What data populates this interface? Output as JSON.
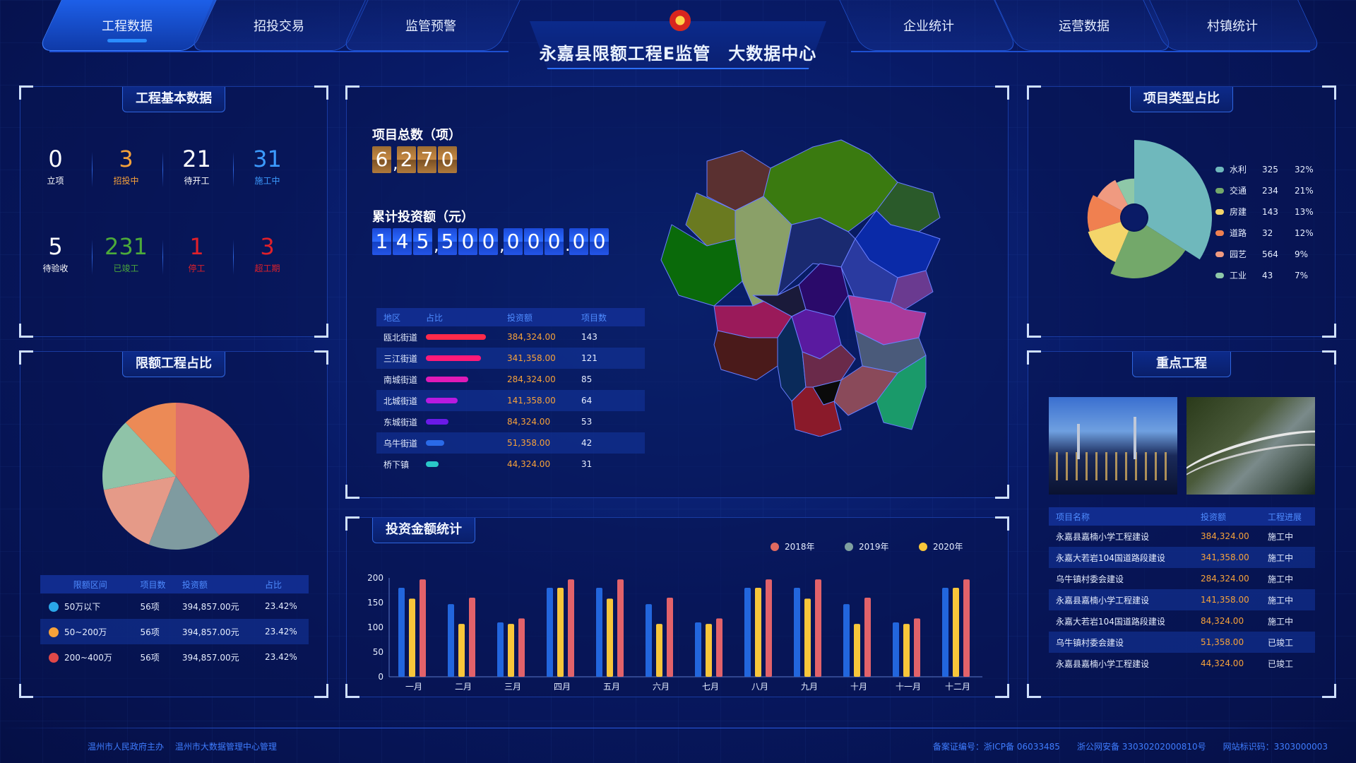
{
  "header": {
    "title": "永嘉县限额工程E监管　大数据中心",
    "tabs_left": [
      "工程数据",
      "招投交易",
      "监管预警"
    ],
    "tabs_right": [
      "企业统计",
      "运营数据",
      "村镇统计"
    ],
    "active_tab": "工程数据"
  },
  "basic": {
    "title": "工程基本数据",
    "row1": [
      {
        "value": "0",
        "label": "立项",
        "color": "#ffffff"
      },
      {
        "value": "3",
        "label": "招投中",
        "color": "#f7a23a"
      },
      {
        "value": "21",
        "label": "待开工",
        "color": "#ffffff"
      },
      {
        "value": "31",
        "label": "施工中",
        "color": "#3c9bff"
      }
    ],
    "row2": [
      {
        "value": "5",
        "label": "待验收",
        "color": "#ffffff"
      },
      {
        "value": "231",
        "label": "已竣工",
        "color": "#4caa3a"
      },
      {
        "value": "1",
        "label": "停工",
        "color": "#e0202a"
      },
      {
        "value": "3",
        "label": "超工期",
        "color": "#e0202a"
      }
    ]
  },
  "quota": {
    "title": "限额工程占比",
    "headers": [
      "限额区间",
      "项目数",
      "投资额",
      "占比"
    ],
    "rows": [
      {
        "range": "50万以下",
        "count": "56项",
        "amount": "394,857.00元",
        "ratio": "23.42%",
        "color": "#2aa6e8"
      },
      {
        "range": "50~200万",
        "count": "56项",
        "amount": "394,857.00元",
        "ratio": "23.42%",
        "color": "#f7a23a"
      },
      {
        "range": "200~400万",
        "count": "56项",
        "amount": "394,857.00元",
        "ratio": "23.42%",
        "color": "#e04848"
      }
    ]
  },
  "quota_chart": {
    "type": "pie",
    "slices": [
      {
        "value": 40,
        "color": "#e0706a"
      },
      {
        "value": 16,
        "color": "#7f9ba0"
      },
      {
        "value": 16,
        "color": "#e59a88"
      },
      {
        "value": 16,
        "color": "#8fc3a8"
      },
      {
        "value": 12,
        "color": "#ec8a56"
      }
    ]
  },
  "center": {
    "total_label": "项目总数（项）",
    "total_digits": [
      "6",
      ",",
      "2",
      "7",
      "0"
    ],
    "invest_label": "累计投资额（元）",
    "invest_digits": [
      "1",
      "4",
      "5",
      ",",
      "5",
      "0",
      "0",
      ",",
      "0",
      "0",
      "0",
      ".",
      "0",
      "0"
    ],
    "table_headers": [
      "地区",
      "占比",
      "投资额",
      "项目数"
    ],
    "regions": [
      {
        "name": "瓯北街道",
        "bar": 0.85,
        "color": "#ff2a4a",
        "amount": "384,324.00",
        "count": "143"
      },
      {
        "name": "三江街道",
        "bar": 0.78,
        "color": "#ff1a78",
        "amount": "341,358.00",
        "count": "121"
      },
      {
        "name": "南城街道",
        "bar": 0.6,
        "color": "#e01ab8",
        "amount": "284,324.00",
        "count": "85"
      },
      {
        "name": "北城街道",
        "bar": 0.45,
        "color": "#b81ae0",
        "amount": "141,358.00",
        "count": "64"
      },
      {
        "name": "东城街道",
        "bar": 0.32,
        "color": "#6a1ae8",
        "amount": "84,324.00",
        "count": "53"
      },
      {
        "name": "乌牛街道",
        "bar": 0.26,
        "color": "#2a6ae8",
        "amount": "51,358.00",
        "count": "42"
      },
      {
        "name": "桥下镇",
        "bar": 0.18,
        "color": "#2ac8c8",
        "amount": "44,324.00",
        "count": "31"
      }
    ]
  },
  "project_type": {
    "title": "项目类型占比",
    "items": [
      {
        "name": "水利",
        "count": "325",
        "pct": "32%",
        "color": "#6fb8bc",
        "value": 32
      },
      {
        "name": "交通",
        "count": "234",
        "pct": "21%",
        "color": "#73a86a",
        "value": 21
      },
      {
        "name": "房建",
        "count": "143",
        "pct": "13%",
        "color": "#f4d56a",
        "value": 13
      },
      {
        "name": "道路",
        "count": "32",
        "pct": "12%",
        "color": "#f08050",
        "value": 12
      },
      {
        "name": "园艺",
        "count": "564",
        "pct": "9%",
        "color": "#f09a80",
        "value": 9
      },
      {
        "name": "工业",
        "count": "43",
        "pct": "7%",
        "color": "#8ec8a8",
        "value": 7
      }
    ]
  },
  "key_projects": {
    "title": "重点工程",
    "headers": [
      "项目名称",
      "投资额",
      "工程进展"
    ],
    "rows": [
      {
        "name": "永嘉县嘉楠小学工程建设",
        "amount": "384,324.00",
        "status": "施工中"
      },
      {
        "name": "永嘉大若岩104国道路段建设",
        "amount": "341,358.00",
        "status": "施工中"
      },
      {
        "name": "乌牛镇村委会建设",
        "amount": "284,324.00",
        "status": "施工中"
      },
      {
        "name": "永嘉县嘉楠小学工程建设",
        "amount": "141,358.00",
        "status": "施工中"
      },
      {
        "name": "永嘉大若岩104国道路段建设",
        "amount": "84,324.00",
        "status": "施工中"
      },
      {
        "name": "乌牛镇村委会建设",
        "amount": "51,358.00",
        "status": "已竣工"
      },
      {
        "name": "永嘉县嘉楠小学工程建设",
        "amount": "44,324.00",
        "status": "已竣工"
      }
    ]
  },
  "invest_chart_title": "投资金额统计",
  "chart_data": {
    "type": "bar",
    "categories": [
      "一月",
      "二月",
      "三月",
      "四月",
      "五月",
      "六月",
      "七月",
      "八月",
      "九月",
      "十月",
      "十一月",
      "十二月"
    ],
    "series": [
      {
        "name": "2018年",
        "color": "#2266dd",
        "values": [
          180,
          147,
          110,
          180,
          180,
          147,
          110,
          180,
          180,
          147,
          110,
          180
        ]
      },
      {
        "name": "2019年",
        "color": "#f8c63a",
        "values": [
          158,
          107,
          107,
          180,
          158,
          107,
          107,
          180,
          158,
          107,
          107,
          180
        ]
      },
      {
        "name": "2020年",
        "color": "#e2626a",
        "values": [
          197,
          160,
          118,
          197,
          197,
          160,
          118,
          197,
          197,
          160,
          118,
          197
        ]
      }
    ],
    "legend_colors": [
      "#e06a60",
      "#7fa0a0",
      "#f8c63a"
    ],
    "ylim": [
      0,
      200
    ],
    "yticks": [
      "0",
      "50",
      "100",
      "150",
      "200"
    ]
  },
  "footer": {
    "left": "温州市人民政府主办　 温州市大数据管理中心管理",
    "right": "备案证编号：浙ICP备 06033485　　浙公网安备 33030202000810号　　网站标识码：3303000003"
  }
}
